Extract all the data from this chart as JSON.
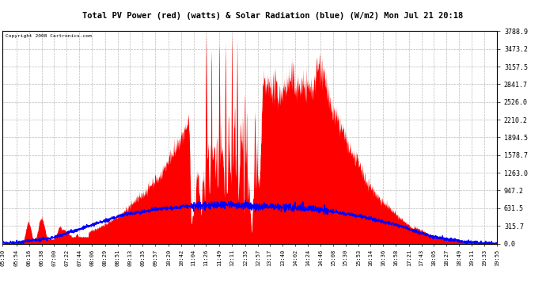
{
  "title": "Total PV Power (red) (watts) & Solar Radiation (blue) (W/m2) Mon Jul 21 20:18",
  "copyright": "Copyright 2008 Cartronics.com",
  "ymax": 3788.9,
  "yticks": [
    0.0,
    315.7,
    631.5,
    947.2,
    1263.0,
    1578.7,
    1894.5,
    2210.2,
    2526.0,
    2841.7,
    3157.5,
    3473.2,
    3788.9
  ],
  "ytick_labels": [
    "0.0",
    "315.7",
    "631.5",
    "947.2",
    "1263.0",
    "1578.7",
    "1894.5",
    "2210.2",
    "2526.0",
    "2841.7",
    "3157.5",
    "3473.2",
    "3788.9"
  ],
  "bg_color": "#ffffff",
  "plot_bg_color": "#ffffff",
  "grid_color": "#bbbbbb",
  "pv_color": "#ff0000",
  "solar_color": "#0000ff",
  "title_bg": "#c8c8c8",
  "border_color": "#000000",
  "xtick_labels": [
    "05:30",
    "05:54",
    "06:16",
    "06:38",
    "07:00",
    "07:22",
    "07:44",
    "08:06",
    "08:29",
    "08:51",
    "09:13",
    "09:35",
    "09:57",
    "10:20",
    "10:42",
    "11:04",
    "11:26",
    "11:49",
    "12:11",
    "12:35",
    "12:57",
    "13:17",
    "13:40",
    "14:02",
    "14:24",
    "14:46",
    "15:08",
    "15:30",
    "15:53",
    "16:14",
    "16:36",
    "16:58",
    "17:21",
    "17:43",
    "18:05",
    "18:27",
    "18:49",
    "19:11",
    "19:33",
    "19:55"
  ]
}
